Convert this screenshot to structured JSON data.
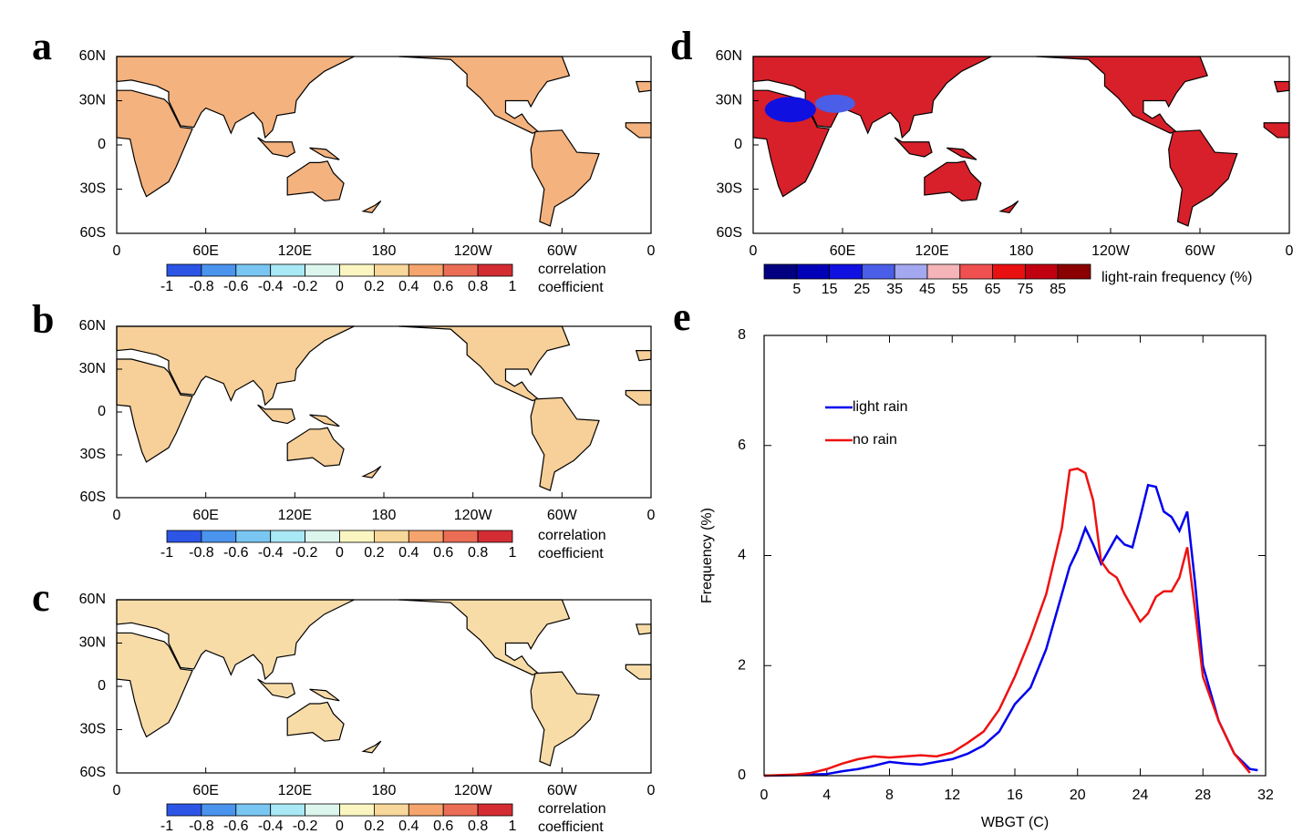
{
  "chart_data": [
    {
      "type": "map",
      "panel": "a",
      "lat_labels": [
        "60N",
        "30N",
        "0",
        "30S",
        "60S"
      ],
      "lon_labels": [
        "0",
        "60E",
        "120E",
        "180",
        "120W",
        "60W",
        "0"
      ],
      "land_color": "#f4b27e",
      "colorbar": {
        "ticks": [
          -1,
          -0.8,
          -0.6,
          -0.4,
          -0.2,
          0,
          0.2,
          0.4,
          0.6,
          0.8,
          1
        ],
        "colors": [
          "#2c55e6",
          "#4a94ee",
          "#79c6f2",
          "#a9e8f5",
          "#dcf6ee",
          "#fbf6c1",
          "#f8d79a",
          "#f4a46c",
          "#ec6d55",
          "#d42c33"
        ],
        "label": [
          "correlation",
          "coefficient"
        ]
      }
    },
    {
      "type": "map",
      "panel": "b",
      "lat_labels": [
        "60N",
        "30N",
        "0",
        "30S",
        "60S"
      ],
      "lon_labels": [
        "0",
        "60E",
        "120E",
        "180",
        "120W",
        "60W",
        "0"
      ],
      "land_color": "#f7cf98",
      "colorbar": {
        "ticks": [
          -1,
          -0.8,
          -0.6,
          -0.4,
          -0.2,
          0,
          0.2,
          0.4,
          0.6,
          0.8,
          1
        ],
        "colors": [
          "#2c55e6",
          "#4a94ee",
          "#79c6f2",
          "#a9e8f5",
          "#dcf6ee",
          "#fbf6c1",
          "#f8d79a",
          "#f4a46c",
          "#ec6d55",
          "#d42c33"
        ],
        "label": [
          "correlation",
          "coefficient"
        ]
      }
    },
    {
      "type": "map",
      "panel": "c",
      "lat_labels": [
        "60N",
        "30N",
        "0",
        "30S",
        "60S"
      ],
      "lon_labels": [
        "0",
        "60E",
        "120E",
        "180",
        "120W",
        "60W",
        "0"
      ],
      "land_color": "#f8dca8",
      "colorbar": {
        "ticks": [
          -1,
          -0.8,
          -0.6,
          -0.4,
          -0.2,
          0,
          0.2,
          0.4,
          0.6,
          0.8,
          1
        ],
        "colors": [
          "#2c55e6",
          "#4a94ee",
          "#79c6f2",
          "#a9e8f5",
          "#dcf6ee",
          "#fbf6c1",
          "#f8d79a",
          "#f4a46c",
          "#ec6d55",
          "#d42c33"
        ],
        "label": [
          "correlation",
          "coefficient"
        ]
      }
    },
    {
      "type": "map",
      "panel": "d",
      "lat_labels": [
        "60N",
        "30N",
        "0",
        "30S",
        "60S"
      ],
      "lon_labels": [
        "0",
        "60E",
        "120E",
        "180",
        "120W",
        "60W",
        "0"
      ],
      "land_color": "#d8202a",
      "colorbar": {
        "ticks": [
          5,
          15,
          25,
          35,
          45,
          55,
          65,
          75,
          85
        ],
        "colors": [
          "#000080",
          "#0000b8",
          "#1010e0",
          "#4a5ee8",
          "#a4a8f0",
          "#f4b4b8",
          "#f05050",
          "#e81010",
          "#c00010",
          "#8b0000"
        ],
        "label": [
          "light-rain frequency (%)"
        ]
      }
    },
    {
      "type": "line",
      "panel": "e",
      "x_label": "WBGT (C)",
      "y_label": "Frequency (%)",
      "xlim": [
        0,
        32
      ],
      "xticks": [
        0,
        4,
        8,
        12,
        16,
        20,
        24,
        28,
        32
      ],
      "ylim": [
        0,
        8
      ],
      "yticks": [
        0,
        2,
        4,
        6,
        8
      ],
      "legend": "upper left",
      "series": [
        {
          "name": "light rain",
          "color": "#0000ee",
          "x": [
            0,
            2,
            4,
            5,
            6,
            7,
            8,
            9,
            10,
            11,
            12,
            13,
            14,
            15,
            16,
            17,
            18,
            19,
            19.5,
            20,
            20.5,
            21,
            21.5,
            22,
            22.5,
            23,
            23.5,
            24,
            24.5,
            25,
            25.5,
            26,
            26.5,
            27,
            27.5,
            28,
            29,
            30,
            31,
            31.5
          ],
          "values": [
            0,
            0.01,
            0.03,
            0.08,
            0.12,
            0.18,
            0.25,
            0.22,
            0.2,
            0.25,
            0.3,
            0.4,
            0.55,
            0.8,
            1.3,
            1.6,
            2.3,
            3.3,
            3.8,
            4.1,
            4.5,
            4.2,
            3.85,
            4.1,
            4.35,
            4.2,
            4.15,
            4.7,
            5.28,
            5.25,
            4.8,
            4.7,
            4.45,
            4.8,
            3.5,
            2.0,
            1.0,
            0.4,
            0.12,
            0.1
          ]
        },
        {
          "name": "no rain",
          "color": "#ee1111",
          "x": [
            0,
            2,
            3,
            4,
            5,
            6,
            7,
            8,
            9,
            10,
            11,
            12,
            13,
            14,
            15,
            16,
            17,
            18,
            19,
            19.5,
            20,
            20.5,
            21,
            21.5,
            22,
            22.5,
            23,
            24,
            24.5,
            25,
            25.5,
            26,
            26.5,
            27,
            27.5,
            28,
            29,
            30,
            31
          ],
          "values": [
            0,
            0.02,
            0.05,
            0.12,
            0.22,
            0.3,
            0.35,
            0.33,
            0.35,
            0.37,
            0.35,
            0.42,
            0.6,
            0.8,
            1.2,
            1.8,
            2.5,
            3.3,
            4.5,
            5.55,
            5.58,
            5.5,
            5.0,
            3.9,
            3.7,
            3.6,
            3.3,
            2.8,
            2.95,
            3.25,
            3.35,
            3.35,
            3.6,
            4.15,
            3.0,
            1.8,
            1.0,
            0.4,
            0.05
          ]
        }
      ]
    }
  ]
}
